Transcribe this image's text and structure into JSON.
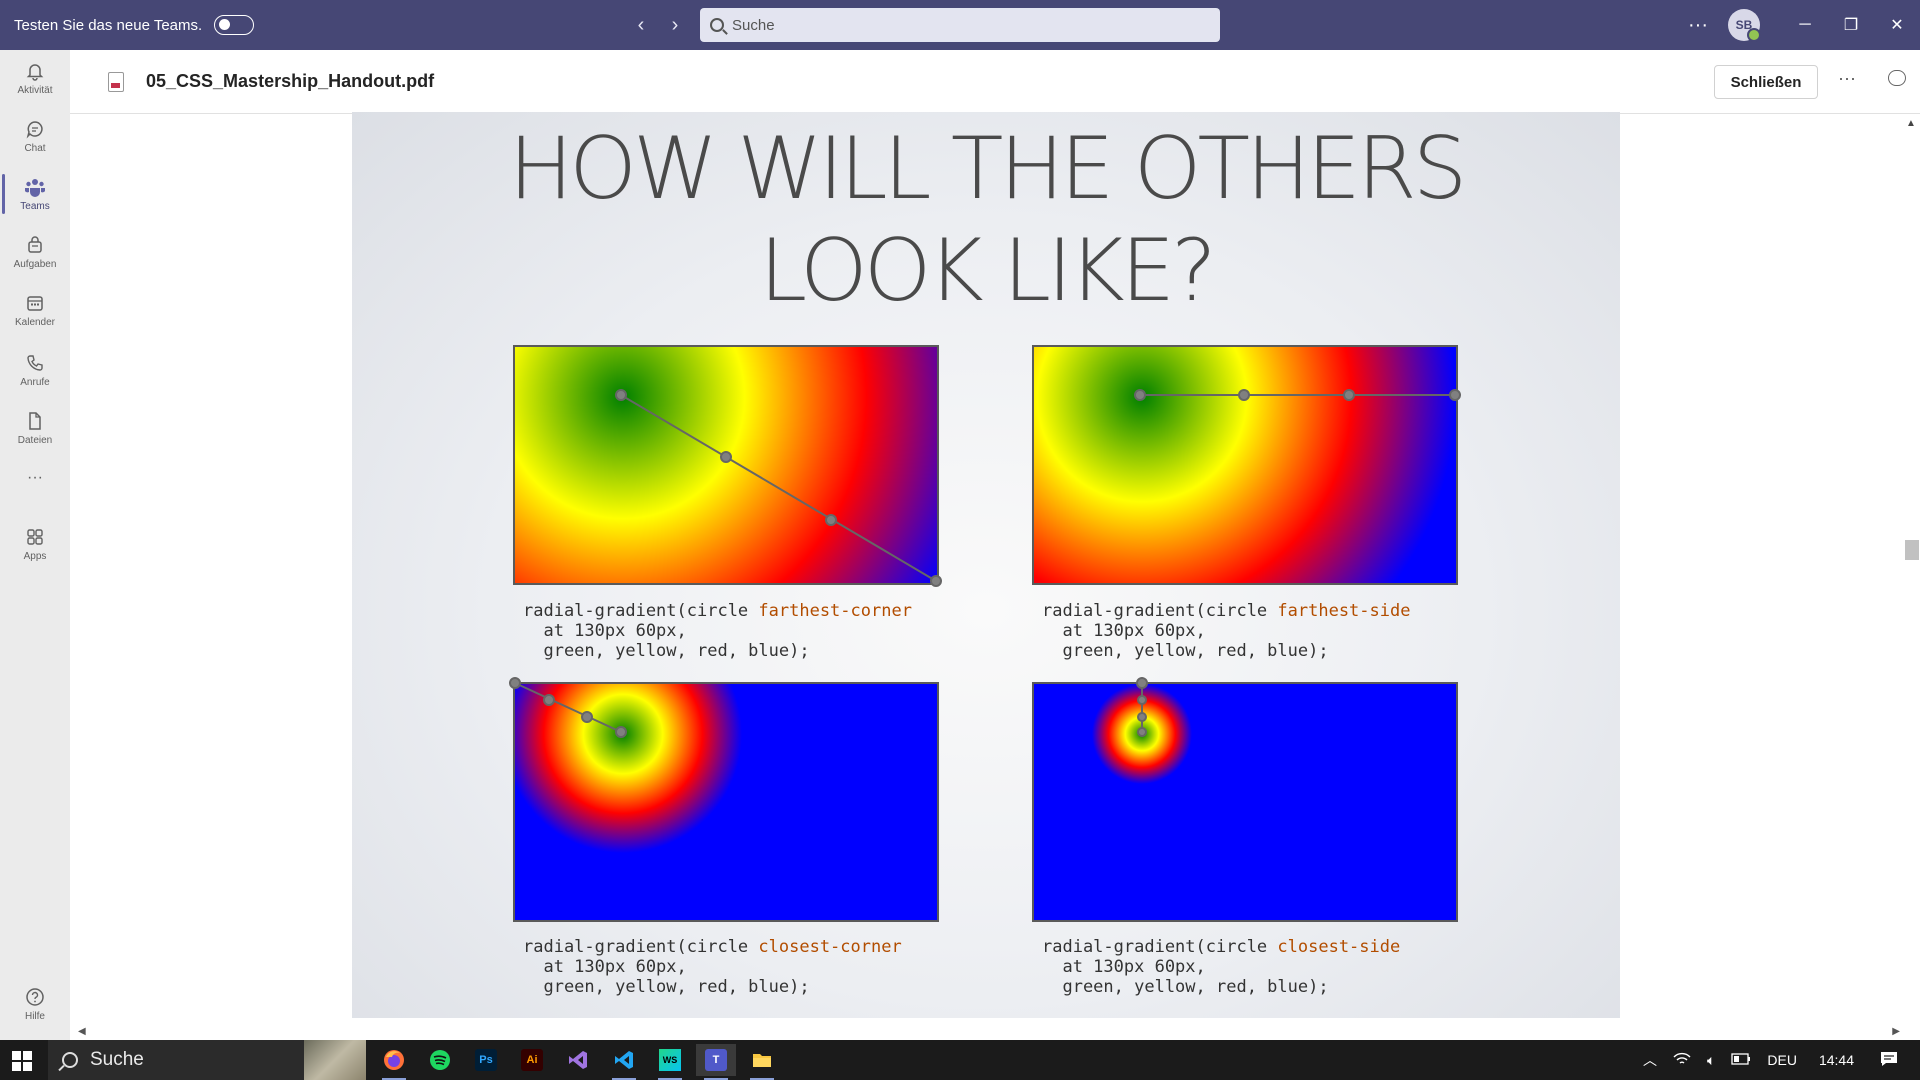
{
  "titlebar": {
    "try_new_label": "Testen Sie das neue Teams.",
    "search_placeholder": "Suche",
    "avatar_initials": "SB"
  },
  "rail": {
    "items": [
      {
        "label": "Aktivität",
        "icon": "bell-icon"
      },
      {
        "label": "Chat",
        "icon": "chat-icon"
      },
      {
        "label": "Teams",
        "icon": "teams-icon"
      },
      {
        "label": "Aufgaben",
        "icon": "assignments-icon"
      },
      {
        "label": "Kalender",
        "icon": "calendar-icon"
      },
      {
        "label": "Anrufe",
        "icon": "phone-icon"
      },
      {
        "label": "Dateien",
        "icon": "file-icon"
      },
      {
        "label": "Apps",
        "icon": "apps-icon"
      },
      {
        "label": "Hilfe",
        "icon": "help-icon"
      }
    ]
  },
  "document": {
    "filename": "05_CSS_Mastership_Handout.pdf",
    "close_label": "Schließen"
  },
  "slide": {
    "title_line1": "HOW WILL THE OTHERS",
    "title_line2": "LOOK LIKE?",
    "panels": [
      {
        "prefix": "radial-gradient(circle ",
        "keyword": "farthest-corner",
        "line2": "  at 130px 60px,",
        "line3": "  green, yellow, red, blue);"
      },
      {
        "prefix": "radial-gradient(circle ",
        "keyword": "farthest-side",
        "line2": "  at 130px 60px,",
        "line3": "  green, yellow, red, blue);"
      },
      {
        "prefix": "radial-gradient(circle ",
        "keyword": "closest-corner",
        "line2": "  at 130px 60px,",
        "line3": "  green, yellow, red, blue);"
      },
      {
        "prefix": "radial-gradient(circle ",
        "keyword": "closest-side",
        "line2": "  at 130px 60px,",
        "line3": "  green, yellow, red, blue);"
      }
    ]
  },
  "taskbar": {
    "search_label": "Suche",
    "apps": [
      "firefox-icon",
      "spotify-icon",
      "photoshop-icon",
      "illustrator-icon",
      "visual-studio-icon",
      "vscode-icon",
      "webstorm-icon",
      "teams-icon",
      "file-explorer-icon"
    ],
    "ps_label": "Ps",
    "ai_label": "Ai",
    "ws_label": "WS",
    "teams_label": "T",
    "language": "DEU",
    "time": "14:44"
  },
  "colors": {
    "titlebar": "#464775",
    "accent": "#6264a7",
    "code_keyword": "#b24d00"
  }
}
